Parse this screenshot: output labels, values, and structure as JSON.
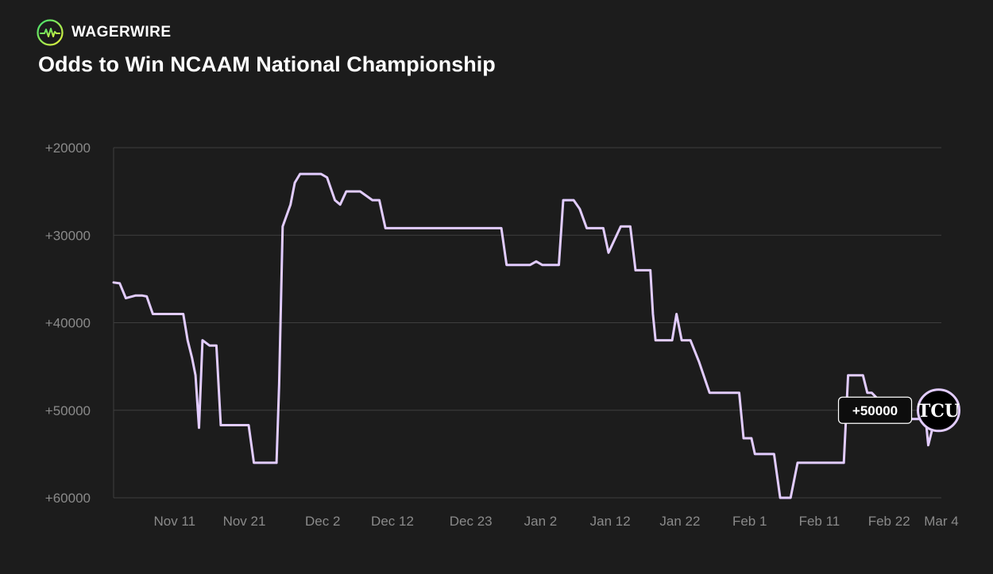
{
  "header": {
    "brand": "WAGERWIRE",
    "brand_icon": "pulse-line-icon",
    "title": "Odds to Win NCAAM National Championship"
  },
  "colors": {
    "background": "#1c1c1c",
    "line": "#e2ccff",
    "grid": "#3e3e3e",
    "tick": "#8a8a8a",
    "brand_gradient": [
      "#3ee06f",
      "#e7f23b"
    ]
  },
  "chart_data": {
    "type": "line",
    "title": "Odds to Win NCAAM National Championship",
    "xlabel": "",
    "ylabel": "",
    "y_inverted": true,
    "ylim": [
      20000,
      60000
    ],
    "y_ticks": [
      20000,
      30000,
      40000,
      50000,
      60000
    ],
    "y_tick_labels": [
      "+20000",
      "+30000",
      "+40000",
      "+50000",
      "+60000"
    ],
    "x_range": [
      0,
      95
    ],
    "x_ticks": [
      7,
      15,
      24,
      32,
      41,
      49,
      57,
      65,
      73,
      81,
      89,
      95
    ],
    "x_tick_labels": [
      "Nov 11",
      "Nov 21",
      "Dec 2",
      "Dec 12",
      "Dec 23",
      "Jan 2",
      "Jan 12",
      "Jan 22",
      "Feb 1",
      "Feb 11",
      "Feb 22",
      "Mar 4"
    ],
    "grid": true,
    "series": [
      {
        "name": "TCU",
        "x": [
          0,
          0.7,
          1.4,
          2.5,
          3.3,
          3.8,
          4.5,
          5.5,
          8.0,
          8.5,
          9.0,
          9.4,
          9.8,
          10.2,
          11.0,
          11.8,
          12.3,
          13.2,
          15.5,
          16.1,
          16.8,
          18.7,
          19.0,
          19.4,
          20.3,
          20.8,
          21.4,
          22.3,
          23.8,
          24.5,
          25.4,
          26.0,
          26.7,
          27.2,
          28.3,
          29.0,
          29.7,
          30.5,
          31.2,
          31.8,
          32.5,
          33.2,
          44.5,
          45.1,
          45.7,
          47.8,
          48.5,
          49.2,
          50.5,
          51.1,
          51.6,
          52.8,
          53.5,
          54.3,
          55.0,
          56.2,
          56.8,
          58.2,
          58.7,
          59.3,
          59.9,
          60.4,
          61.0,
          61.6,
          61.9,
          62.2,
          62.7,
          63.3,
          64.1,
          64.6,
          65.2,
          65.5,
          66.2,
          67.2,
          68.4,
          68.8,
          69.2,
          69.8,
          70.3,
          71.2,
          71.8,
          72.3,
          73.2,
          73.6,
          74.3,
          74.6,
          75.2,
          75.8,
          76.5,
          77.0,
          77.7,
          78.5,
          79.2,
          79.8,
          80.4,
          80.9,
          81.4,
          81.7,
          83.5,
          83.8,
          84.3,
          85.1,
          86.0,
          86.5,
          87.0,
          87.5,
          88.0,
          91.6,
          92.2,
          93.2,
          93.5,
          94.5
        ],
        "y": [
          35400,
          35500,
          37200,
          36900,
          36900,
          37000,
          39000,
          39000,
          39000,
          42000,
          44000,
          46000,
          52000,
          42000,
          42600,
          42600,
          51700,
          51700,
          51700,
          56000,
          56000,
          56000,
          47000,
          29000,
          26500,
          24000,
          23000,
          23000,
          23000,
          23400,
          26000,
          26500,
          25000,
          25000,
          25000,
          25500,
          26000,
          26000,
          29200,
          29200,
          29200,
          29200,
          29200,
          33400,
          33400,
          33400,
          33000,
          33400,
          33400,
          33400,
          26000,
          26000,
          27000,
          29200,
          29200,
          29200,
          32000,
          29000,
          29000,
          29000,
          34000,
          34000,
          34000,
          34000,
          39000,
          42000,
          42000,
          42000,
          42000,
          39000,
          42000,
          42000,
          42000,
          44500,
          48000,
          48000,
          48000,
          48000,
          48000,
          48000,
          48000,
          53200,
          53200,
          55000,
          55000,
          55000,
          55000,
          55000,
          60000,
          60000,
          60000,
          56000,
          56000,
          56000,
          56000,
          56000,
          56000,
          56000,
          56000,
          56000,
          46000,
          46000,
          46000,
          48000,
          48000,
          48500,
          50000,
          51000,
          51000,
          51000,
          54000,
          50000
        ]
      }
    ],
    "callout": {
      "label": "+50000",
      "team_logo_text": "TCU",
      "x": 94.5,
      "y": 50000
    }
  }
}
